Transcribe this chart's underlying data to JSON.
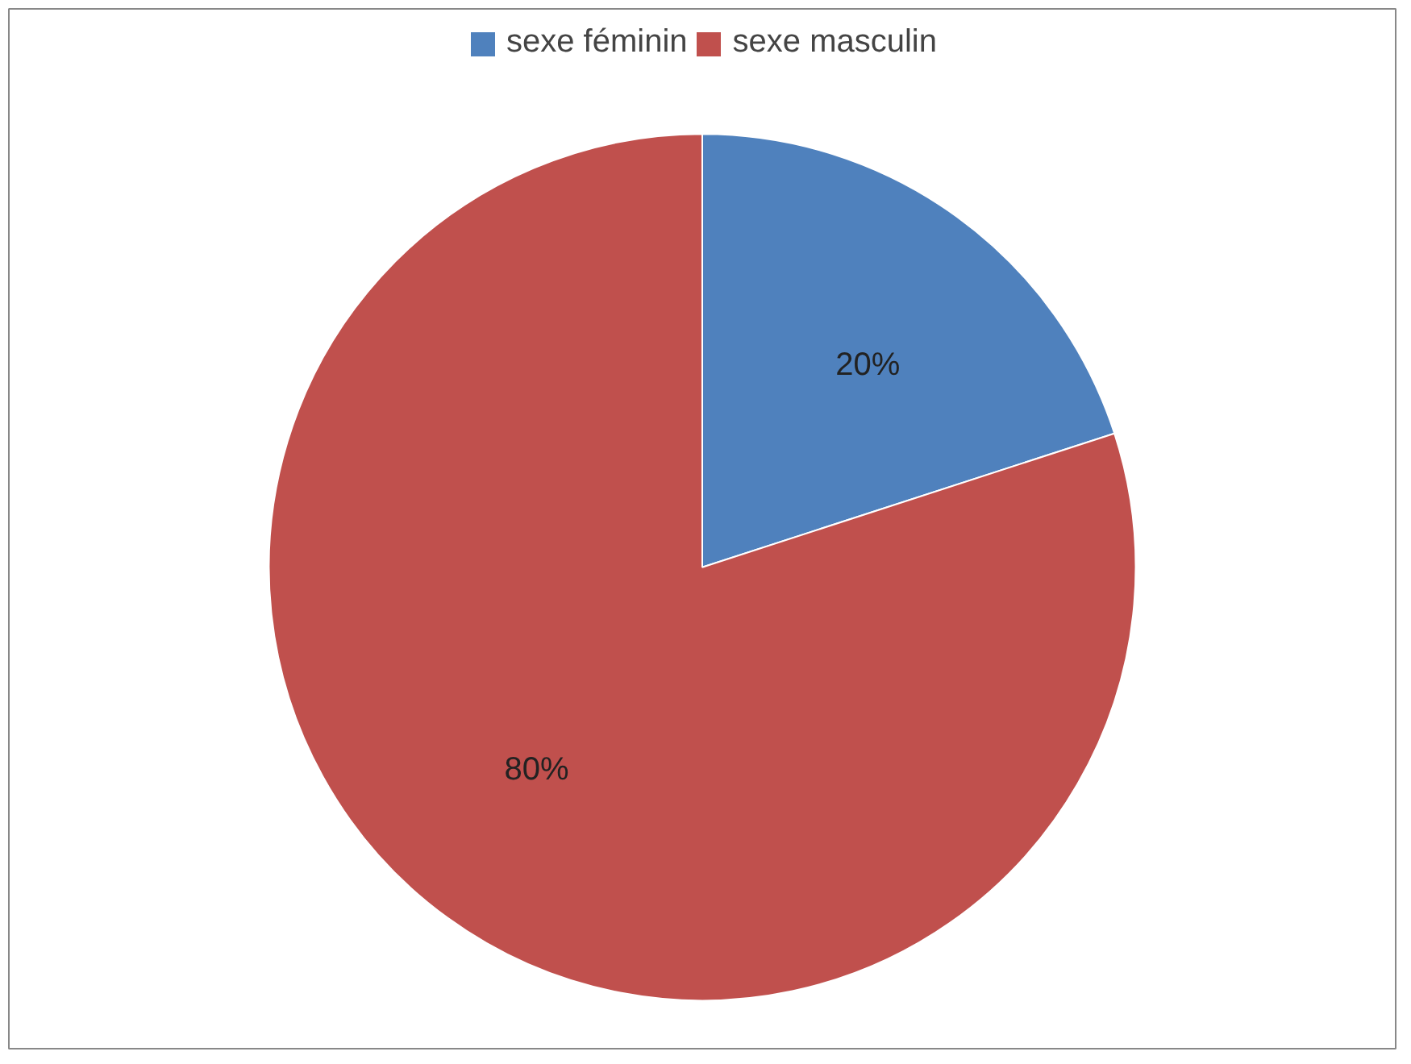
{
  "chart_data": {
    "type": "pie",
    "categories": [
      "sexe féminin",
      "sexe masculin"
    ],
    "values": [
      20,
      80
    ],
    "colors": [
      "#4f81bd",
      "#c0504d"
    ],
    "value_labels": [
      "20%",
      "80%"
    ],
    "legend": "top"
  }
}
